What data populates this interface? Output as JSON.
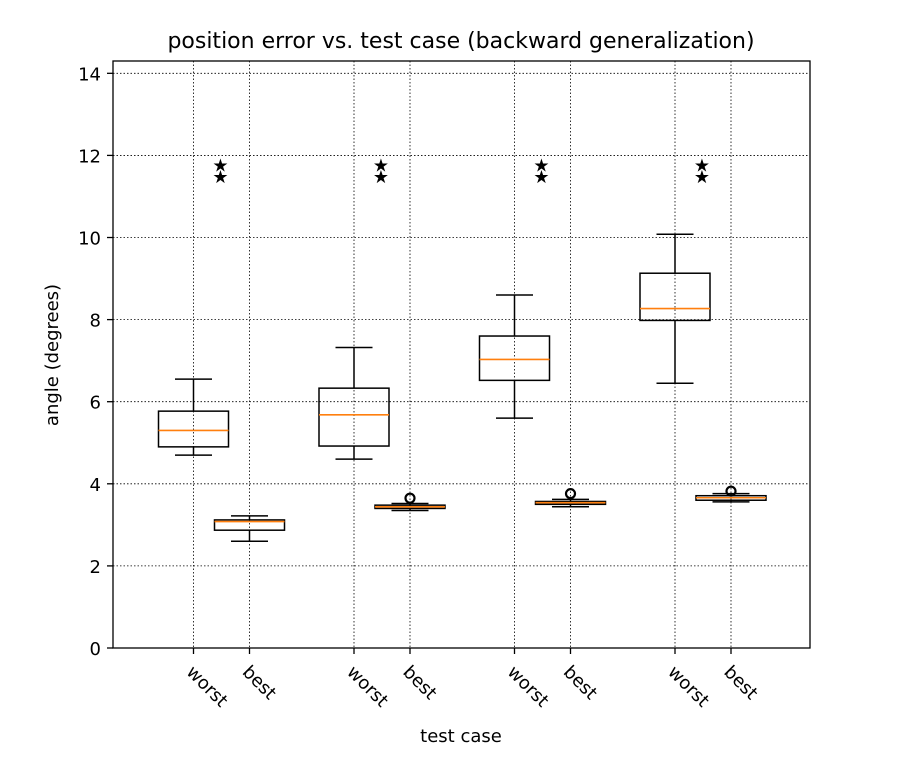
{
  "chart_data": {
    "type": "box",
    "title": "position error vs. test case (backward generalization)",
    "xlabel": "test case",
    "ylabel": "angle (degrees)",
    "ylim": [
      0,
      14.3
    ],
    "yticks": [
      0,
      2,
      4,
      6,
      8,
      10,
      12,
      14
    ],
    "grid": true,
    "groups": [
      {
        "worst": {
          "whislo": 4.7,
          "q1": 4.9,
          "med": 5.3,
          "q3": 5.77,
          "whishi": 6.55,
          "fliers": []
        },
        "best": {
          "whislo": 2.6,
          "q1": 2.87,
          "med": 3.08,
          "q3": 3.12,
          "whishi": 3.22,
          "fliers": []
        },
        "star_values": [
          11.75,
          11.48
        ]
      },
      {
        "worst": {
          "whislo": 4.6,
          "q1": 4.92,
          "med": 5.68,
          "q3": 6.33,
          "whishi": 7.32,
          "fliers": []
        },
        "best": {
          "whislo": 3.35,
          "q1": 3.4,
          "med": 3.44,
          "q3": 3.48,
          "whishi": 3.52,
          "fliers": [
            3.65
          ]
        },
        "star_values": [
          11.75,
          11.48
        ]
      },
      {
        "worst": {
          "whislo": 5.6,
          "q1": 6.52,
          "med": 7.03,
          "q3": 7.6,
          "whishi": 8.6,
          "fliers": []
        },
        "best": {
          "whislo": 3.44,
          "q1": 3.5,
          "med": 3.54,
          "q3": 3.57,
          "whishi": 3.62,
          "fliers": [
            3.76
          ]
        },
        "star_values": [
          11.75,
          11.48
        ]
      },
      {
        "worst": {
          "whislo": 6.45,
          "q1": 7.98,
          "med": 8.27,
          "q3": 9.13,
          "whishi": 10.08,
          "fliers": []
        },
        "best": {
          "whislo": 3.56,
          "q1": 3.6,
          "med": 3.66,
          "q3": 3.71,
          "whishi": 3.76,
          "fliers": [
            3.82
          ]
        },
        "star_values": [
          11.75,
          11.48
        ]
      }
    ],
    "tick_labels": [
      "worst",
      "best",
      "worst",
      "best",
      "worst",
      "best",
      "worst",
      "best"
    ],
    "star_glyph": "★",
    "colors": {
      "median": "#ff7f0e",
      "box": "#000000"
    }
  }
}
